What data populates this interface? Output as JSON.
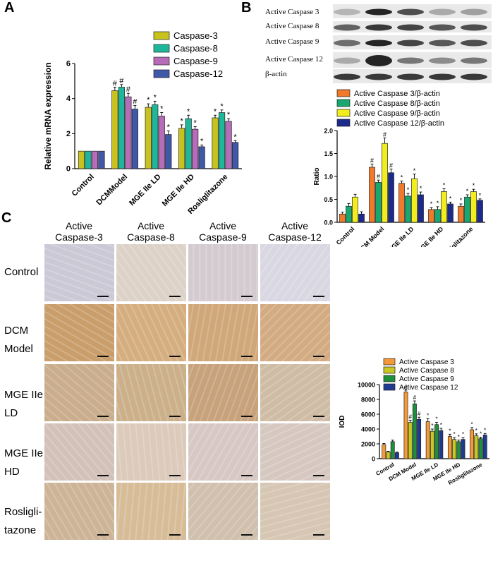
{
  "panels": {
    "a": "A",
    "b": "B",
    "c": "C"
  },
  "panel_a": {
    "legend": [
      "Caspase-3",
      "Caspase-8",
      "Caspase-9",
      "Caspase-12"
    ]
  },
  "panel_b": {
    "blot_labels": [
      "Active Caspase 3",
      "Active Caspase 8",
      "Active Caspase 9",
      "Active Caspase 12",
      "β-actin"
    ],
    "legend": [
      "Active Caspase 3/β-actin",
      "Active Caspase 8/β-actin",
      "Active Caspase 9/β-actin",
      "Active Caspase 12/β-actin"
    ]
  },
  "panel_c": {
    "col_labels": [
      [
        "Active",
        "Caspase-3"
      ],
      [
        "Active",
        "Caspase-8"
      ],
      [
        "Active",
        "Caspase-9"
      ],
      [
        "Active",
        "Caspase-12"
      ]
    ],
    "row_labels": [
      [
        "Control"
      ],
      [
        "DCM",
        "Model"
      ],
      [
        "MGE IIe",
        "LD"
      ],
      [
        "MGE IIe",
        "HD"
      ],
      [
        "Rosligli-",
        "tazone"
      ]
    ],
    "legend": [
      "Active Caspase 3",
      "Active Caspase 8",
      "Active Caspase 9",
      "Active Caspase 12"
    ]
  },
  "colors": {
    "a": [
      "#c8c21e",
      "#1fb79a",
      "#b66cb8",
      "#3f58a8"
    ],
    "b": [
      "#f0792a",
      "#16a86f",
      "#f2ee1d",
      "#1c2a8c"
    ],
    "c": [
      "#f39a3a",
      "#c9c721",
      "#1f8f3c",
      "#1f3b91"
    ],
    "ihc_control": "#d6d3dc",
    "ihc_brown": "#c9a477"
  },
  "chart_data": [
    {
      "type": "bar",
      "categories": [
        "Control",
        "DCMModel",
        "MGE IIe LD",
        "MGE IIe HD",
        "Rosliglitazone"
      ],
      "ylabel": "Relative mRNA expression",
      "ylim": [
        0,
        6
      ],
      "yticks": [
        "0",
        "2",
        "4",
        "6"
      ],
      "series": [
        {
          "name": "Caspase-3",
          "values": [
            1.0,
            4.45,
            3.5,
            2.3,
            2.9
          ],
          "errors": [
            0,
            0.2,
            0.2,
            0.2,
            0.15
          ]
        },
        {
          "name": "Caspase-8",
          "values": [
            1.0,
            4.65,
            3.65,
            2.85,
            3.2
          ],
          "errors": [
            0,
            0.15,
            0.2,
            0.2,
            0.15
          ]
        },
        {
          "name": "Caspase-9",
          "values": [
            1.0,
            4.1,
            3.0,
            2.25,
            2.7
          ],
          "errors": [
            0,
            0.2,
            0.2,
            0.15,
            0.15
          ]
        },
        {
          "name": "Caspase-12",
          "values": [
            1.0,
            3.4,
            1.95,
            1.25,
            1.5
          ],
          "errors": [
            0,
            0.2,
            0.2,
            0.1,
            0.1
          ]
        }
      ],
      "annotations": [
        [
          "",
          "#",
          "*",
          "*",
          "*"
        ],
        [
          "",
          "#",
          "*",
          "*",
          "*"
        ],
        [
          "",
          "#",
          "*",
          "*",
          "*"
        ],
        [
          "",
          "#",
          "*",
          "*",
          "*"
        ]
      ]
    },
    {
      "type": "bar",
      "categories": [
        "Control",
        "DCM Model",
        "MGE IIe LD",
        "MGE IIe HD",
        "Rosliglitazone"
      ],
      "ylabel": "Ratio",
      "ylim": [
        0,
        2.0
      ],
      "yticks": [
        "0.0",
        "0.5",
        "1.0",
        "1.5",
        "2.0"
      ],
      "series": [
        {
          "name": "Active Caspase 3/β-actin",
          "values": [
            0.18,
            1.2,
            0.85,
            0.28,
            0.35
          ],
          "errors": [
            0.04,
            0.07,
            0.05,
            0.04,
            0.05
          ]
        },
        {
          "name": "Active Caspase 8/β-actin",
          "values": [
            0.35,
            0.87,
            0.57,
            0.28,
            0.55
          ],
          "errors": [
            0.06,
            0.05,
            0.06,
            0.06,
            0.05
          ]
        },
        {
          "name": "Active Caspase 9/β-actin",
          "values": [
            0.55,
            1.72,
            0.95,
            0.67,
            0.67
          ],
          "errors": [
            0.06,
            0.12,
            0.1,
            0.06,
            0.05
          ]
        },
        {
          "name": "Active Caspase 12/β-actin",
          "values": [
            0.18,
            1.08,
            0.6,
            0.4,
            0.48
          ],
          "errors": [
            0.05,
            0.08,
            0.06,
            0.04,
            0.03
          ]
        }
      ],
      "annotations": [
        [
          "",
          "#",
          "*",
          "*",
          "*"
        ],
        [
          "",
          "#",
          "*",
          "*",
          "*"
        ],
        [
          "",
          "#",
          "*",
          "*",
          "*"
        ],
        [
          "",
          "#",
          "*",
          "*",
          "*"
        ]
      ]
    },
    {
      "type": "bar",
      "categories": [
        "Control",
        "DCM Model",
        "MGE IIe LD",
        "MGE IIe HD",
        "Rosliglitazone"
      ],
      "ylabel": "IOD",
      "ylim": [
        0,
        10000
      ],
      "yticks": [
        "0",
        "2000",
        "4000",
        "6000",
        "8000",
        "10000"
      ],
      "series": [
        {
          "name": "Active Caspase 3",
          "values": [
            1900,
            9000,
            5000,
            3000,
            3900
          ],
          "errors": [
            150,
            250,
            400,
            300,
            300
          ]
        },
        {
          "name": "Active Caspase 8",
          "values": [
            900,
            4900,
            3700,
            2600,
            3100
          ],
          "errors": [
            100,
            300,
            300,
            250,
            250
          ]
        },
        {
          "name": "Active Caspase 9",
          "values": [
            2300,
            7400,
            4600,
            2300,
            2700
          ],
          "errors": [
            200,
            400,
            300,
            200,
            200
          ]
        },
        {
          "name": "Active Caspase 12",
          "values": [
            800,
            5300,
            3800,
            2600,
            3200
          ],
          "errors": [
            100,
            300,
            300,
            250,
            200
          ]
        }
      ],
      "annotations": [
        [
          "",
          "#",
          "*",
          "*",
          "*"
        ],
        [
          "",
          "#",
          "*",
          "*",
          "*"
        ],
        [
          "",
          "#",
          "*",
          "*",
          "*"
        ],
        [
          "",
          "#",
          "*",
          "*",
          "*"
        ]
      ]
    }
  ]
}
